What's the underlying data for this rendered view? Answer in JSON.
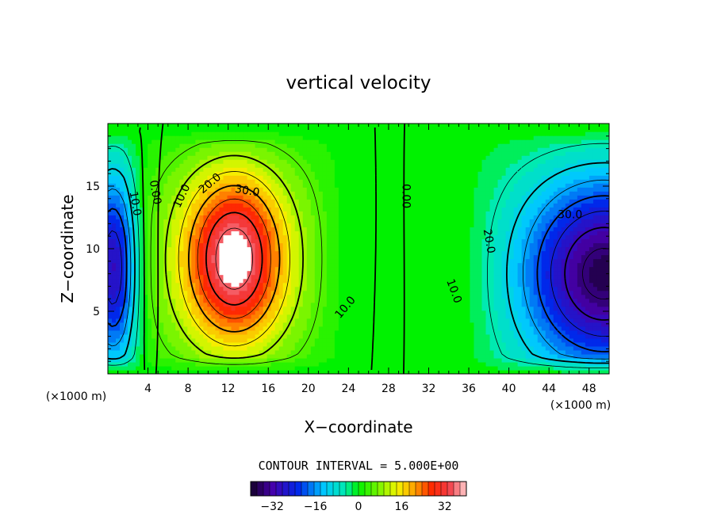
{
  "chart_data": {
    "type": "contour",
    "title": "vertical velocity",
    "xlabel": "X−coordinate",
    "ylabel": "Z−coordinate",
    "x_unit_left": "(×1000 m)",
    "x_unit_right": "(×1000 m)",
    "xlim": [
      0,
      50
    ],
    "ylim": [
      0,
      20
    ],
    "x_ticks": [
      {
        "value": 4,
        "label": "4"
      },
      {
        "value": 8,
        "label": "8"
      },
      {
        "value": 12,
        "label": "12"
      },
      {
        "value": 16,
        "label": "16"
      },
      {
        "value": 20,
        "label": "20"
      },
      {
        "value": 24,
        "label": "24"
      },
      {
        "value": 28,
        "label": "28"
      },
      {
        "value": 32,
        "label": "32"
      },
      {
        "value": 36,
        "label": "36"
      },
      {
        "value": 40,
        "label": "40"
      },
      {
        "value": 44,
        "label": "44"
      },
      {
        "value": 48,
        "label": "48"
      }
    ],
    "y_ticks": [
      {
        "value": 5,
        "label": "5"
      },
      {
        "value": 10,
        "label": "10"
      },
      {
        "value": 15,
        "label": "15"
      }
    ],
    "contour_interval_text": "CONTOUR INTERVAL = 5.000E+00",
    "contour_interval": 5,
    "contour_labels": [
      {
        "text": "10.0",
        "x": 2.7,
        "z": 13.6,
        "angle": 80
      },
      {
        "text": "0.00",
        "x": 4.7,
        "z": 14.5,
        "angle": 80
      },
      {
        "text": "10.0",
        "x": 7.4,
        "z": 14.2,
        "angle": -65
      },
      {
        "text": "20.0",
        "x": 10.2,
        "z": 15.2,
        "angle": -40
      },
      {
        "text": "30.0",
        "x": 13.9,
        "z": 14.6,
        "angle": 10
      },
      {
        "text": "10.0",
        "x": 23.7,
        "z": 5.3,
        "angle": -50
      },
      {
        "text": "0.00",
        "x": 29.7,
        "z": 14.2,
        "angle": 90
      },
      {
        "text": "20.0",
        "x": 38.0,
        "z": 10.6,
        "angle": 80
      },
      {
        "text": "10.0",
        "x": 34.5,
        "z": 6.6,
        "angle": 70
      },
      {
        "text": "30.0",
        "x": 46.1,
        "z": 12.7,
        "angle": 0
      }
    ],
    "field": {
      "cells": [
        {
          "sign": 1,
          "amp": 37,
          "cx": 12.6,
          "cz": 9.2,
          "sx": 3.2,
          "sz": 4.4,
          "rx": 11.0,
          "rz": 11.0
        },
        {
          "sign": -1,
          "amp": 35,
          "cx": 49.5,
          "cz": 8.0,
          "sx": 5.2,
          "sz": 5.0,
          "rx": 13.5,
          "rz": 11.5
        },
        {
          "sign": -1,
          "amp": 27,
          "cx": 0.5,
          "cz": 8.5,
          "sx": 1.5,
          "sz": 5.0,
          "rx": 3.6,
          "rz": 11.0
        }
      ]
    },
    "colorbar": {
      "min": -40,
      "max": 40,
      "ticks": [
        {
          "value": -32,
          "label": "−32"
        },
        {
          "value": -16,
          "label": "−16"
        },
        {
          "value": 0,
          "label": "0"
        },
        {
          "value": 16,
          "label": "16"
        },
        {
          "value": 32,
          "label": "32"
        }
      ]
    }
  }
}
